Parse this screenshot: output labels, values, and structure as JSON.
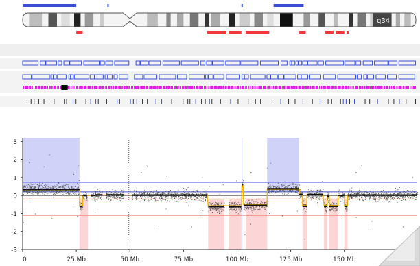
{
  "chromosome": {
    "band_label": "q34",
    "gain_bars_mb": [
      [
        0,
        25
      ],
      [
        39.5,
        40
      ],
      [
        102,
        102.6
      ],
      [
        117,
        131
      ]
    ],
    "loss_bars_mb": [
      [
        25,
        28
      ],
      [
        86,
        95
      ],
      [
        96,
        102
      ],
      [
        104,
        115
      ],
      [
        129,
        132
      ],
      [
        141,
        145
      ],
      [
        146,
        150
      ],
      [
        151,
        152
      ]
    ],
    "centromere_mb": 50
  },
  "tracks": [
    {
      "name": "track-1",
      "color": "#3b4fd6"
    },
    {
      "name": "track-2",
      "color": "#3b4fd6"
    },
    {
      "name": "track-3",
      "color": "#e01ee0"
    },
    {
      "name": "track-4",
      "color": "#333333"
    }
  ],
  "chart_data": {
    "type": "scatter",
    "x_unit": "Mb",
    "xlim": [
      0,
      184
    ],
    "ylim": [
      -3,
      3.2
    ],
    "x_ticks": [
      0,
      25,
      50,
      75,
      100,
      125,
      150
    ],
    "x_tick_labels": [
      "0",
      "25 Mb",
      "50 Mb",
      "75 Mb",
      "100 Mb",
      "125 Mb",
      "150 Mb"
    ],
    "y_ticks": [
      3,
      2,
      1,
      0,
      -1,
      -2,
      -3
    ],
    "y_tick_labels": [
      "3",
      "2",
      "1",
      "0",
      "-1",
      "-2",
      "-3"
    ],
    "threshold_lines": {
      "gain_upper": 0.72,
      "gain_lower": 0.2,
      "loss_upper": -0.2,
      "loss_lower": -1.1
    },
    "gain_regions_mb": [
      [
        0,
        26.5
      ],
      [
        114,
        129
      ]
    ],
    "loss_regions_mb": [
      [
        26.5,
        30.5
      ],
      [
        86.5,
        94
      ],
      [
        96,
        102
      ],
      [
        104,
        114
      ],
      [
        130.5,
        132.5
      ],
      [
        140.5,
        142
      ],
      [
        143,
        147
      ],
      [
        150,
        151.5
      ]
    ],
    "segments": [
      {
        "x": [
          0,
          26.5
        ],
        "y": 0.33
      },
      {
        "x": [
          26.5,
          28
        ],
        "y": -0.62
      },
      {
        "x": [
          28,
          30
        ],
        "y": 0
      },
      {
        "x": [
          32,
          34
        ],
        "y": 0
      },
      {
        "x": [
          34,
          37
        ],
        "y": 0.03
      },
      {
        "x": [
          39,
          47
        ],
        "y": 0.03
      },
      {
        "x": [
          51,
          86
        ],
        "y": 0.02
      },
      {
        "x": [
          86.5,
          94
        ],
        "y": -0.62
      },
      {
        "x": [
          96,
          102
        ],
        "y": -0.62
      },
      {
        "x": [
          102.2,
          102.8
        ],
        "y": 0.6
      },
      {
        "x": [
          103,
          114
        ],
        "y": -0.55
      },
      {
        "x": [
          114,
          129
        ],
        "y": 0.37
      },
      {
        "x": [
          129,
          130.5
        ],
        "y": 0.05
      },
      {
        "x": [
          130.5,
          132.5
        ],
        "y": -0.6
      },
      {
        "x": [
          132.5,
          140
        ],
        "y": 0.05
      },
      {
        "x": [
          140.5,
          142
        ],
        "y": -0.6
      },
      {
        "x": [
          142,
          143
        ],
        "y": -0.05
      },
      {
        "x": [
          143,
          147
        ],
        "y": -0.6
      },
      {
        "x": [
          147,
          150
        ],
        "y": 0
      },
      {
        "x": [
          150,
          151.5
        ],
        "y": -0.6
      },
      {
        "x": [
          151.5,
          184
        ],
        "y": 0.02
      }
    ],
    "grid": false
  }
}
